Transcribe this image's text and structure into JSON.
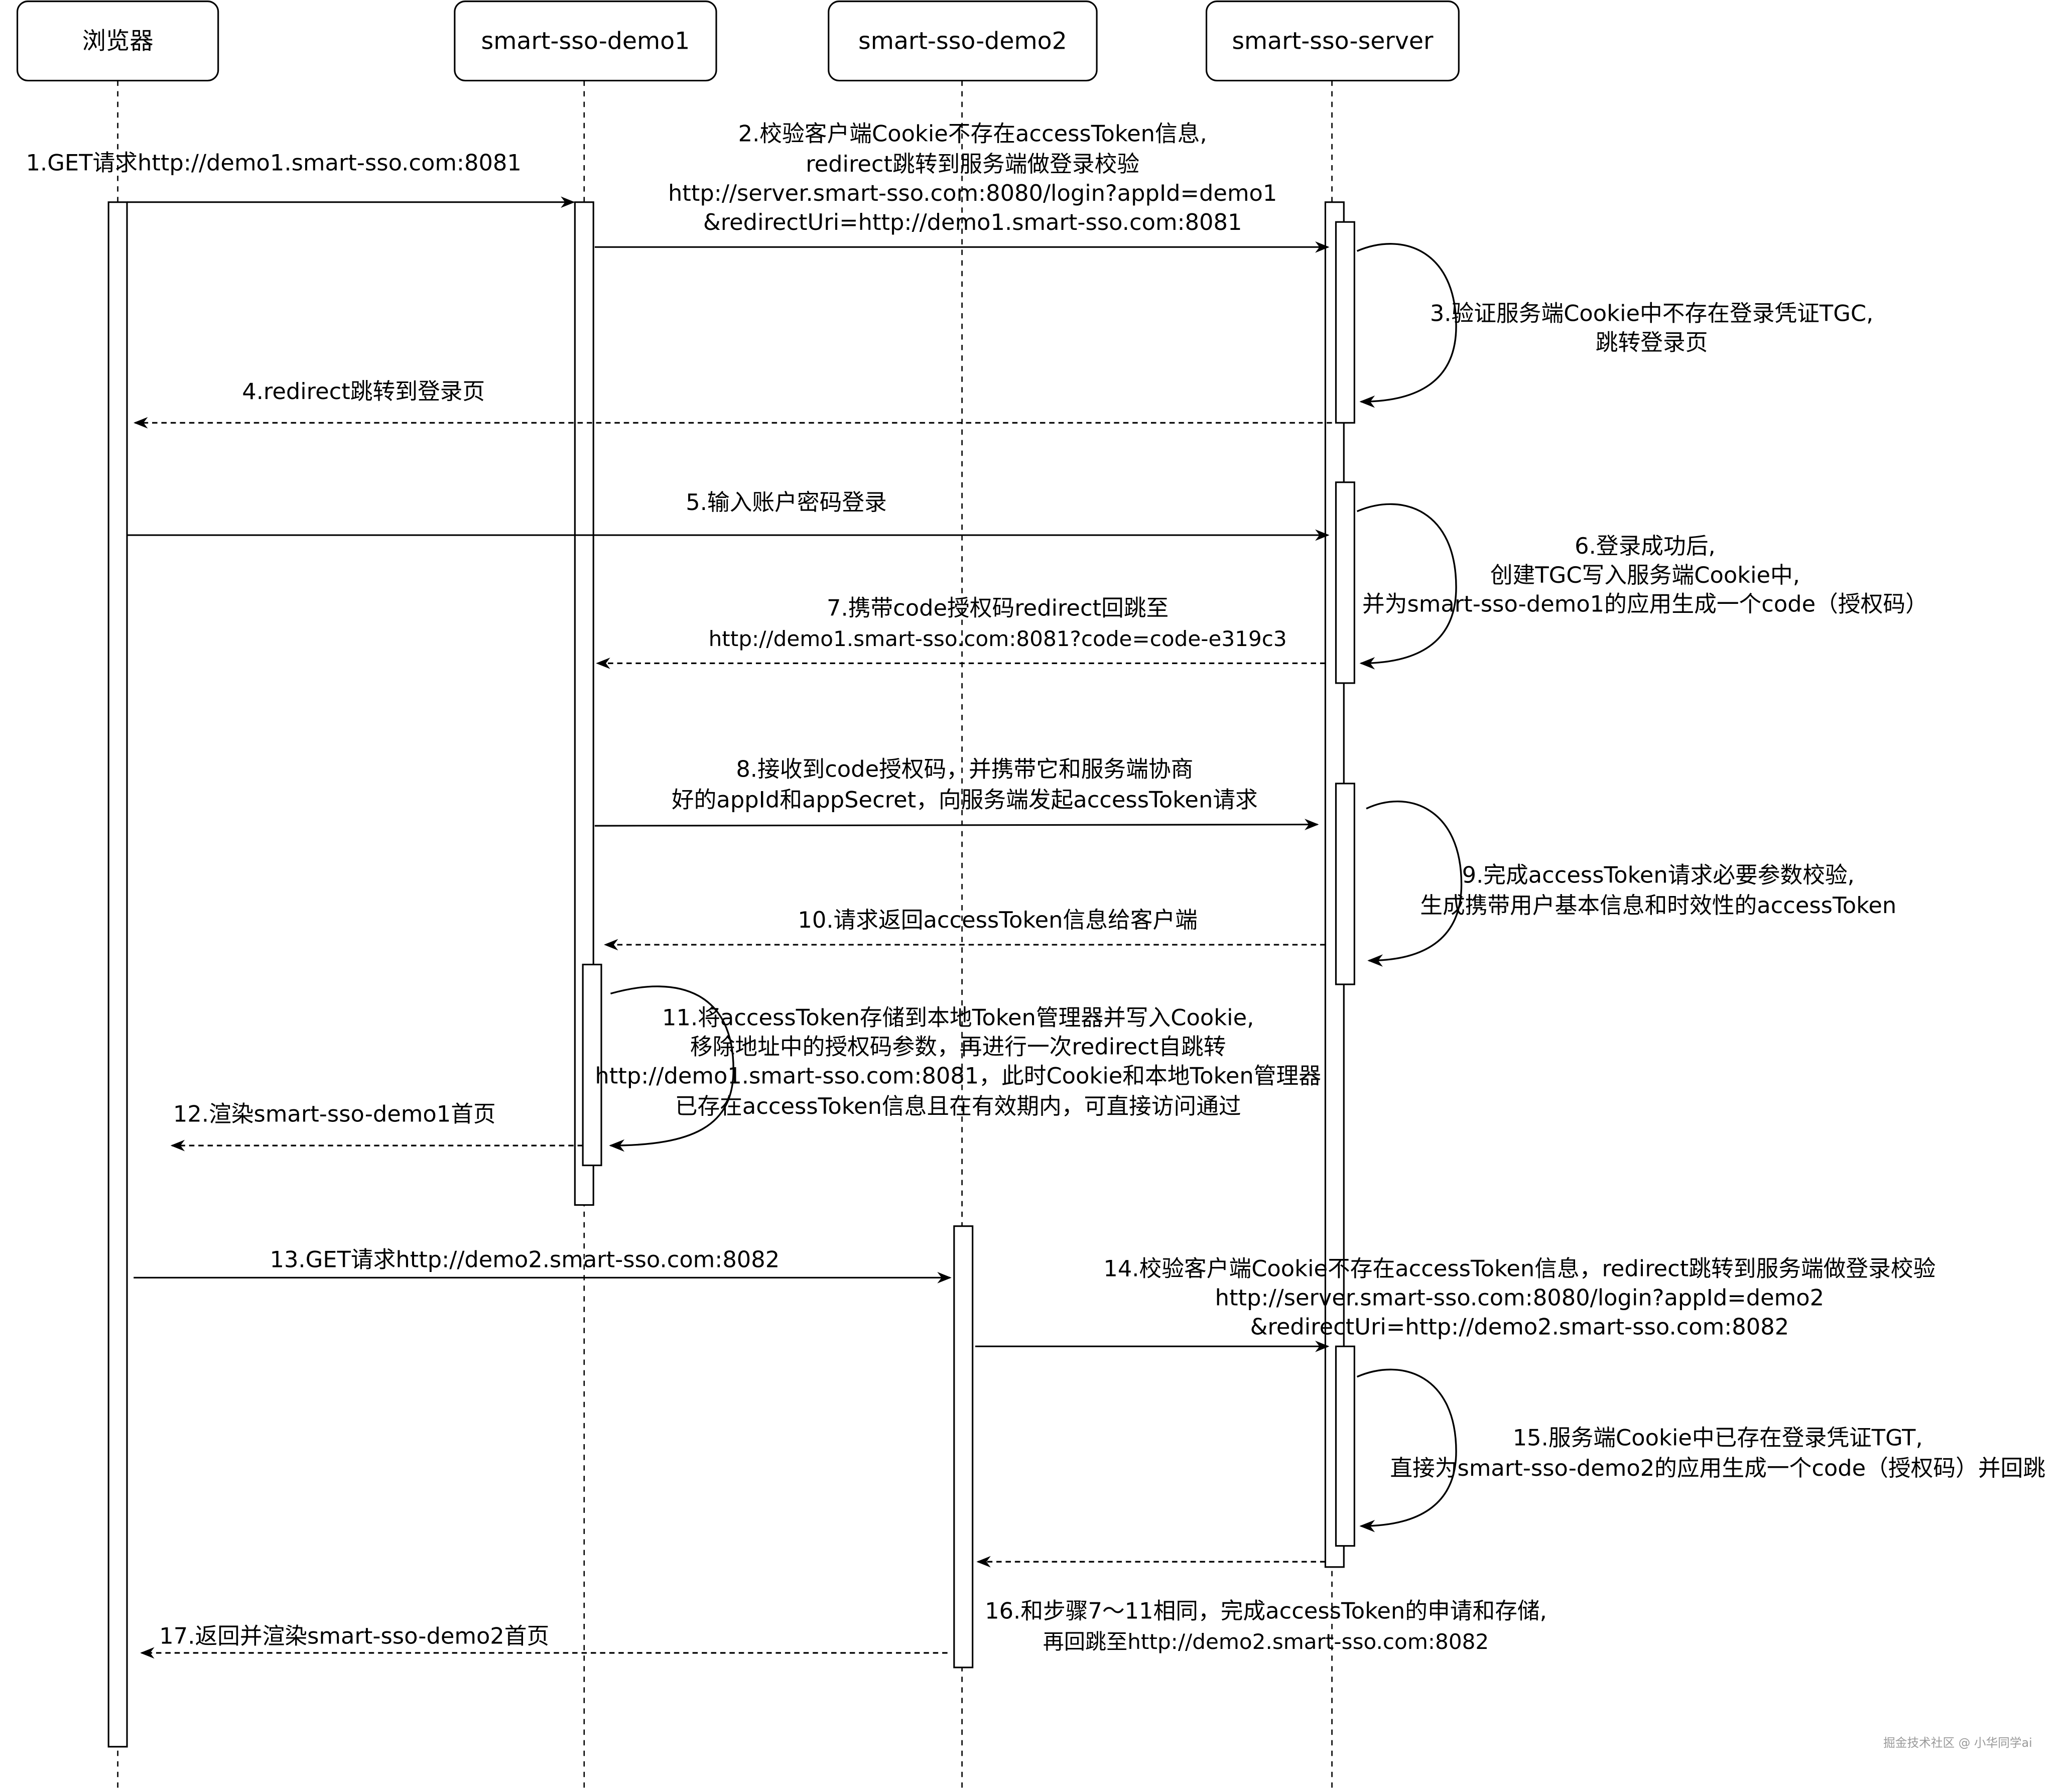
{
  "participants": [
    {
      "label": "浏览器"
    },
    {
      "label": "smart-sso-demo1"
    },
    {
      "label": "smart-sso-demo2"
    },
    {
      "label": "smart-sso-server"
    }
  ],
  "messages": [
    {
      "style": "solid",
      "lines": [
        "1.GET请求http://demo1.smart-sso.com:8081"
      ]
    },
    {
      "style": "solid",
      "lines": [
        "2.校验客户端Cookie不存在accessToken信息,",
        "redirect跳转到服务端做登录校验",
        "http://server.smart-sso.com:8080/login?appId=demo1",
        "&redirectUri=http://demo1.smart-sso.com:8081"
      ]
    },
    {
      "style": "self",
      "lines": [
        "3.验证服务端Cookie中不存在登录凭证TGC,",
        "跳转登录页"
      ]
    },
    {
      "style": "dashed",
      "lines": [
        "4.redirect跳转到登录页"
      ]
    },
    {
      "style": "solid",
      "lines": [
        "5.输入账户密码登录"
      ]
    },
    {
      "style": "self",
      "lines": [
        "6.登录成功后,",
        "创建TGC写入服务端Cookie中,",
        "并为smart-sso-demo1的应用生成一个code（授权码）"
      ]
    },
    {
      "style": "dashed",
      "lines": [
        "7.携带code授权码redirect回跳至",
        "http://demo1.smart-sso.com:8081?code=code-e319c3"
      ]
    },
    {
      "style": "solid",
      "lines": [
        "8.接收到code授权码，并携带它和服务端协商",
        "好的appId和appSecret，向服务端发起accessToken请求"
      ]
    },
    {
      "style": "self",
      "lines": [
        "9.完成accessToken请求必要参数校验,",
        "生成携带用户基本信息和时效性的accessToken"
      ]
    },
    {
      "style": "dashed",
      "lines": [
        "10.请求返回accessToken信息给客户端"
      ]
    },
    {
      "style": "self",
      "lines": [
        "11.将accessToken存储到本地Token管理器并写入Cookie,",
        "移除地址中的授权码参数，再进行一次redirect自跳转",
        "http://demo1.smart-sso.com:8081，此时Cookie和本地Token管理器",
        "已存在accessToken信息且在有效期内，可直接访问通过"
      ]
    },
    {
      "style": "dashed",
      "lines": [
        "12.渲染smart-sso-demo1首页"
      ]
    },
    {
      "style": "solid",
      "lines": [
        "13.GET请求http://demo2.smart-sso.com:8082"
      ]
    },
    {
      "style": "solid",
      "lines": [
        "14.校验客户端Cookie不存在accessToken信息，redirect跳转到服务端做登录校验",
        "http://server.smart-sso.com:8080/login?appId=demo2",
        "&redirectUri=http://demo2.smart-sso.com:8082"
      ]
    },
    {
      "style": "self",
      "lines": [
        "15.服务端Cookie中已存在登录凭证TGT,",
        "直接为smart-sso-demo2的应用生成一个code（授权码）并回跳"
      ]
    },
    {
      "style": "dashed",
      "lines": [
        "16.和步骤7～11相同，完成accessToken的申请和存储,",
        "再回跳至http://demo2.smart-sso.com:8082"
      ]
    },
    {
      "style": "dashed",
      "lines": [
        "17.返回并渲染smart-sso-demo2首页"
      ]
    }
  ],
  "watermark": "掘金技术社区 @ 小华同学ai",
  "colors": {
    "stroke": "#000000",
    "background": "#ffffff",
    "watermark": "#999999"
  }
}
